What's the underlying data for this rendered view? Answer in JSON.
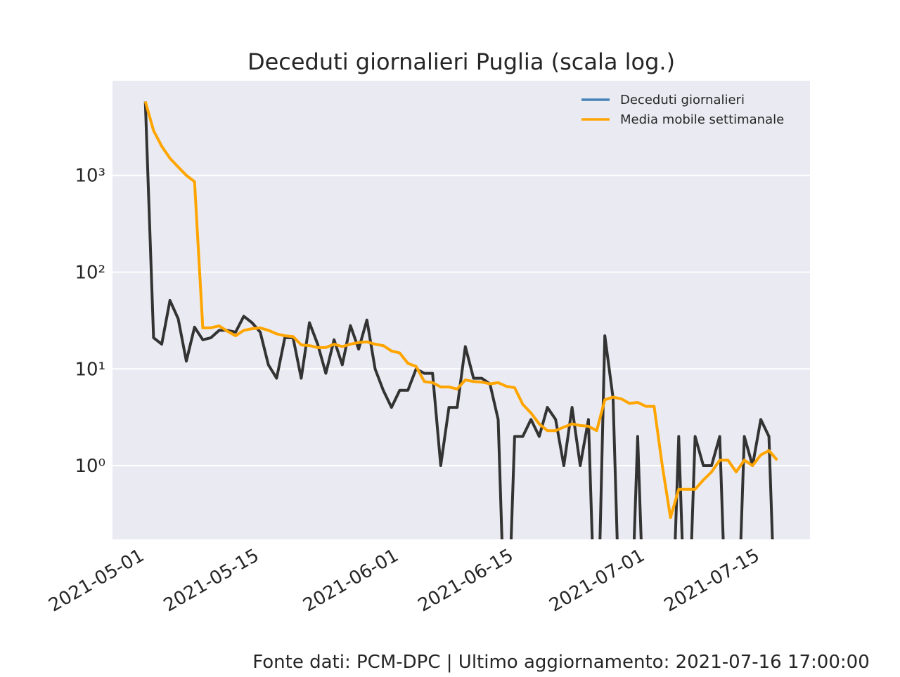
{
  "chart_data": {
    "type": "line",
    "title": "Deceduti giornalieri Puglia (scala log.)",
    "footer": "Fonte dati: PCM-DPC | Ultimo aggiornamento: 2021-07-16 17:00:00",
    "x": [
      "2021-05-01",
      "2021-05-02",
      "2021-05-03",
      "2021-05-04",
      "2021-05-05",
      "2021-05-06",
      "2021-05-07",
      "2021-05-08",
      "2021-05-09",
      "2021-05-10",
      "2021-05-11",
      "2021-05-12",
      "2021-05-13",
      "2021-05-14",
      "2021-05-15",
      "2021-05-16",
      "2021-05-17",
      "2021-05-18",
      "2021-05-19",
      "2021-05-20",
      "2021-05-21",
      "2021-05-22",
      "2021-05-23",
      "2021-05-24",
      "2021-05-25",
      "2021-05-26",
      "2021-05-27",
      "2021-05-28",
      "2021-05-29",
      "2021-05-30",
      "2021-05-31",
      "2021-06-01",
      "2021-06-02",
      "2021-06-03",
      "2021-06-04",
      "2021-06-05",
      "2021-06-06",
      "2021-06-07",
      "2021-06-08",
      "2021-06-09",
      "2021-06-10",
      "2021-06-11",
      "2021-06-12",
      "2021-06-13",
      "2021-06-14",
      "2021-06-15",
      "2021-06-16",
      "2021-06-17",
      "2021-06-18",
      "2021-06-19",
      "2021-06-20",
      "2021-06-21",
      "2021-06-22",
      "2021-06-23",
      "2021-06-24",
      "2021-06-25",
      "2021-06-26",
      "2021-06-27",
      "2021-06-28",
      "2021-06-29",
      "2021-06-30",
      "2021-07-01",
      "2021-07-02",
      "2021-07-03",
      "2021-07-04",
      "2021-07-05",
      "2021-07-06",
      "2021-07-07",
      "2021-07-08",
      "2021-07-09",
      "2021-07-10",
      "2021-07-11",
      "2021-07-12",
      "2021-07-13",
      "2021-07-14",
      "2021-07-15",
      "2021-07-16",
      "2021-07-17"
    ],
    "series": [
      {
        "name": "Deceduti giornalieri",
        "color": "#333333",
        "legend_color": "#4682b4",
        "values": [
          5800,
          21,
          18,
          51,
          33,
          12,
          27,
          20,
          21,
          25,
          25,
          24,
          35,
          30,
          24,
          11,
          8,
          21,
          21,
          8,
          30,
          18,
          9,
          20,
          11,
          28,
          16,
          32,
          10,
          6,
          4,
          6,
          6,
          10,
          9,
          9,
          1,
          4,
          4,
          17,
          8,
          8,
          7,
          3,
          0,
          2,
          2,
          3,
          2,
          4,
          3,
          1,
          4,
          1,
          3,
          0,
          22,
          5,
          0,
          0,
          2,
          0,
          0,
          0,
          0,
          2,
          0,
          2,
          1,
          1,
          2,
          0,
          0,
          2,
          1,
          3,
          2,
          0
        ]
      },
      {
        "name": "Media mobile settimanale",
        "color": "#ffa500",
        "values": [
          5800,
          2900,
          2000,
          1500,
          1220,
          1000,
          860,
          26.5,
          26.6,
          27.8,
          24.5,
          22,
          25,
          26,
          26.5,
          25,
          23,
          22,
          21.6,
          17.7,
          17.4,
          16.6,
          16.6,
          18,
          17,
          18,
          18.7,
          19,
          18,
          17.4,
          15.3,
          14.6,
          11.4,
          10.6,
          7.4,
          7.2,
          6.5,
          6.5,
          6.2,
          7.7,
          7.4,
          7.3,
          7.0,
          7.2,
          6.6,
          6.4,
          4.3,
          3.5,
          2.7,
          2.3,
          2.3,
          2.5,
          2.7,
          2.6,
          2.55,
          2.3,
          4.8,
          5.1,
          4.9,
          4.4,
          4.5,
          4.1,
          4.1,
          1.0,
          0.29,
          0.57,
          0.57,
          0.57,
          0.71,
          0.86,
          1.14,
          1.14,
          0.86,
          1.14,
          1.0,
          1.29,
          1.43,
          1.14
        ]
      }
    ],
    "xlim": [
      "2021-04-27",
      "2021-07-21"
    ],
    "xticks": [
      "2021-05-01",
      "2021-05-15",
      "2021-06-01",
      "2021-06-15",
      "2021-07-01",
      "2021-07-15"
    ],
    "ylim": [
      0.173,
      9500
    ],
    "yticks": [
      {
        "value": 1,
        "label": "10⁰"
      },
      {
        "value": 10,
        "label": "10¹"
      },
      {
        "value": 100,
        "label": "10²"
      },
      {
        "value": 1000,
        "label": "10³"
      }
    ],
    "log_y": true,
    "grid": true,
    "legend": "upper right",
    "background": "#eaeaf2"
  }
}
